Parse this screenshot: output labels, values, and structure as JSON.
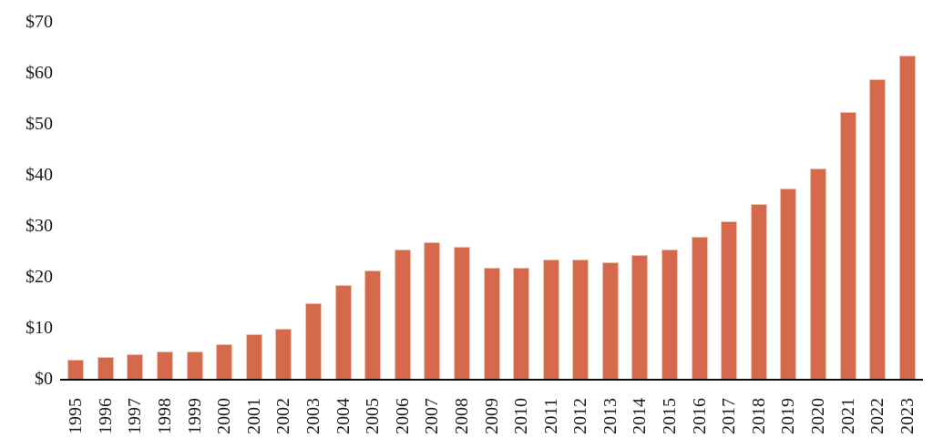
{
  "chart_data": {
    "type": "bar",
    "title": "",
    "xlabel": "",
    "ylabel": "",
    "categories": [
      "1995",
      "1996",
      "1997",
      "1998",
      "1999",
      "2000",
      "2001",
      "2002",
      "2003",
      "2004",
      "2005",
      "2006",
      "2007",
      "2008",
      "2009",
      "2010",
      "2011",
      "2012",
      "2013",
      "2014",
      "2015",
      "2016",
      "2017",
      "2018",
      "2019",
      "2020",
      "2021",
      "2022",
      "2023"
    ],
    "values": [
      4,
      4.5,
      5,
      5.5,
      5.5,
      7,
      9,
      10,
      15,
      18.5,
      21.5,
      25.5,
      27,
      26,
      22,
      22,
      23.5,
      23.5,
      23,
      24.5,
      25.5,
      28,
      31,
      34.5,
      37.5,
      41.5,
      52.5,
      59,
      63.5
    ],
    "ylim": [
      0,
      70
    ],
    "ytick_step": 10,
    "ytick_labels": [
      "$0",
      "$10",
      "$20",
      "$30",
      "$40",
      "$50",
      "$60",
      "$70"
    ],
    "grid": false,
    "legend": false,
    "x_label_rotation_deg": -90,
    "colors": {
      "bar_fill": "#D5694C",
      "bar_border": "#EFC3B0",
      "axis_line": "#0d0d0d",
      "tick_text": "#1a1a1a",
      "background": "#ffffff"
    }
  }
}
